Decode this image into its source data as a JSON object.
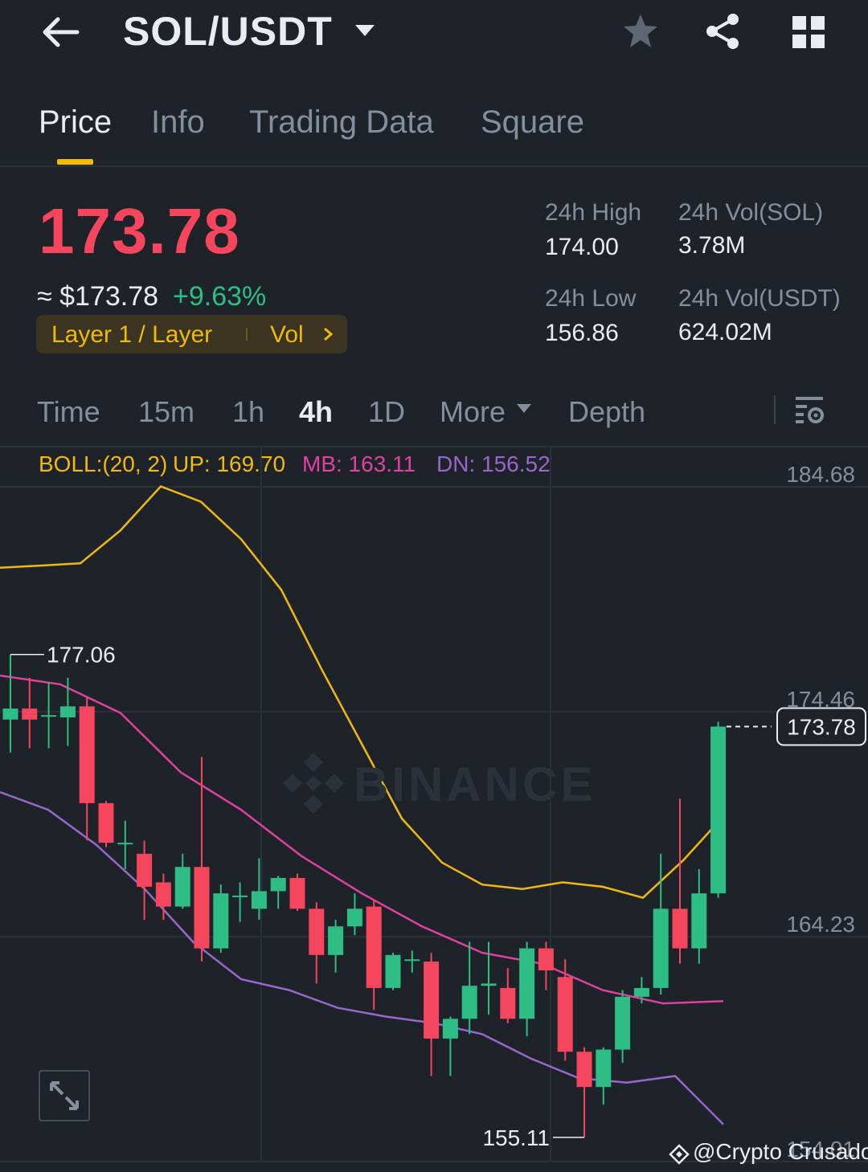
{
  "header": {
    "pair": "SOL/USDT",
    "icons": [
      "back-arrow-icon",
      "caret-down-icon",
      "star-icon",
      "share-icon",
      "grid-icon"
    ]
  },
  "tabs": [
    {
      "label": "Price",
      "active": true
    },
    {
      "label": "Info"
    },
    {
      "label": "Trading Data"
    },
    {
      "label": "Square"
    }
  ],
  "price": {
    "last": "173.78",
    "usd": "≈ $173.78",
    "change": "+9.63%",
    "tag": "Layer 1 / Layer",
    "tag_vol": "Vol"
  },
  "stats": {
    "high_label": "24h High",
    "high": "174.00",
    "low_label": "24h Low",
    "low": "156.86",
    "vol_sol_label": "24h Vol(SOL)",
    "vol_sol": "3.78M",
    "vol_usdt_label": "24h Vol(USDT)",
    "vol_usdt": "624.02M"
  },
  "intervals": [
    "Time",
    "15m",
    "1h",
    "4h",
    "1D",
    "More",
    "Depth"
  ],
  "active_interval": "4h",
  "boll": {
    "title": "BOLL:(20, 2)",
    "up": "UP: 169.70",
    "mb": "MB: 163.11",
    "dn": "DN: 156.52"
  },
  "colors": {
    "bg": "#1e2329",
    "up": "#2ebd85",
    "down": "#f6465d",
    "accent": "#f0b90b",
    "boll_up": "#f0b90b",
    "boll_mb": "#e040a0",
    "boll_dn": "#9966cc"
  },
  "chart_data": {
    "type": "candlestick",
    "y_ticks": [
      "184.68",
      "174.46",
      "164.23",
      "154.01"
    ],
    "ylim": [
      154.01,
      184.68
    ],
    "last_price_label": "173.78",
    "max_label": "177.06",
    "min_label": "155.11",
    "candles": [
      {
        "o": 174.1,
        "c": 174.6,
        "h": 177.06,
        "l": 172.6
      },
      {
        "o": 174.6,
        "c": 174.1,
        "h": 176.0,
        "l": 172.8
      },
      {
        "o": 174.3,
        "c": 174.3,
        "h": 175.8,
        "l": 172.8
      },
      {
        "o": 174.2,
        "c": 174.7,
        "h": 176.0,
        "l": 172.9
      },
      {
        "o": 174.7,
        "c": 170.3,
        "h": 175.1,
        "l": 168.6
      },
      {
        "o": 170.3,
        "c": 168.5,
        "h": 170.4,
        "l": 168.3
      },
      {
        "o": 168.5,
        "c": 168.5,
        "h": 169.5,
        "l": 167.3
      },
      {
        "o": 168.0,
        "c": 166.5,
        "h": 168.6,
        "l": 165.0
      },
      {
        "o": 166.7,
        "c": 165.6,
        "h": 167.1,
        "l": 165.0
      },
      {
        "o": 165.6,
        "c": 167.4,
        "h": 168.0,
        "l": 165.5
      },
      {
        "o": 167.4,
        "c": 163.7,
        "h": 172.4,
        "l": 163.1
      },
      {
        "o": 163.7,
        "c": 166.2,
        "h": 166.6,
        "l": 163.5
      },
      {
        "o": 166.1,
        "c": 166.1,
        "h": 166.7,
        "l": 164.9
      },
      {
        "o": 165.5,
        "c": 166.3,
        "h": 167.8,
        "l": 165.0
      },
      {
        "o": 166.3,
        "c": 166.9,
        "h": 167.0,
        "l": 165.5
      },
      {
        "o": 166.9,
        "c": 165.5,
        "h": 167.1,
        "l": 165.4
      },
      {
        "o": 165.5,
        "c": 163.4,
        "h": 165.8,
        "l": 162.1
      },
      {
        "o": 163.4,
        "c": 164.7,
        "h": 165.0,
        "l": 162.6
      },
      {
        "o": 164.7,
        "c": 165.5,
        "h": 166.2,
        "l": 164.3
      },
      {
        "o": 165.6,
        "c": 161.9,
        "h": 165.9,
        "l": 160.9
      },
      {
        "o": 161.9,
        "c": 163.4,
        "h": 163.5,
        "l": 161.8
      },
      {
        "o": 163.2,
        "c": 163.2,
        "h": 163.6,
        "l": 162.6
      },
      {
        "o": 163.1,
        "c": 159.6,
        "h": 163.5,
        "l": 157.9
      },
      {
        "o": 159.6,
        "c": 160.5,
        "h": 160.6,
        "l": 157.9
      },
      {
        "o": 160.5,
        "c": 162.0,
        "h": 164.0,
        "l": 159.8
      },
      {
        "o": 162.0,
        "c": 162.1,
        "h": 164.0,
        "l": 160.7
      },
      {
        "o": 161.9,
        "c": 160.5,
        "h": 162.8,
        "l": 160.3
      },
      {
        "o": 160.5,
        "c": 163.7,
        "h": 164.0,
        "l": 159.7
      },
      {
        "o": 163.7,
        "c": 162.7,
        "h": 164.0,
        "l": 161.8
      },
      {
        "o": 162.4,
        "c": 159.0,
        "h": 163.2,
        "l": 158.6
      },
      {
        "o": 159.0,
        "c": 157.4,
        "h": 159.2,
        "l": 155.11
      },
      {
        "o": 157.4,
        "c": 159.1,
        "h": 159.2,
        "l": 156.6
      },
      {
        "o": 159.1,
        "c": 161.5,
        "h": 161.8,
        "l": 158.5
      },
      {
        "o": 161.5,
        "c": 161.9,
        "h": 162.4,
        "l": 161.2
      },
      {
        "o": 161.9,
        "c": 165.5,
        "h": 168.0,
        "l": 161.6
      },
      {
        "o": 165.5,
        "c": 163.7,
        "h": 170.5,
        "l": 163.0
      },
      {
        "o": 163.7,
        "c": 166.2,
        "h": 167.3,
        "l": 163.0
      },
      {
        "o": 166.2,
        "c": 173.78,
        "h": 174.0,
        "l": 166.0
      }
    ],
    "boll_up": [
      181.0,
      181.1,
      181.2,
      182.7,
      184.7,
      184.0,
      182.3,
      180.0,
      176.4,
      173.0,
      169.6,
      167.6,
      166.6,
      166.4,
      166.7,
      166.5,
      166.0,
      167.7,
      169.7
    ],
    "boll_mb": [
      176.1,
      175.7,
      174.4,
      171.7,
      170.0,
      167.9,
      166.2,
      164.7,
      163.5,
      163.0,
      161.8,
      161.2,
      161.3
    ],
    "boll_dn": [
      170.8,
      170.0,
      168.4,
      166.4,
      164.0,
      162.3,
      161.8,
      161.0,
      160.6,
      160.3,
      159.8,
      158.7,
      157.8,
      157.6,
      157.9,
      155.7
    ]
  },
  "watermark": "BINANCE",
  "credit": "@Crypto Crusador"
}
